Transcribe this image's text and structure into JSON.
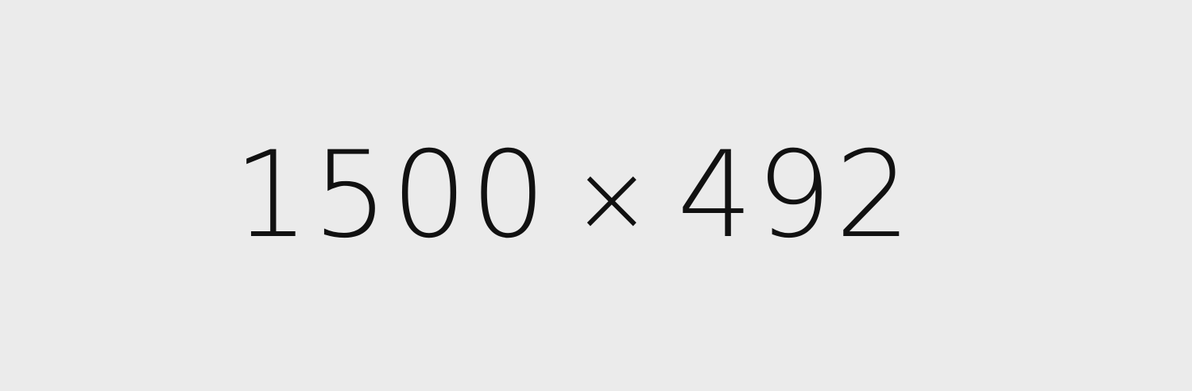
{
  "placeholder": {
    "width_text": "1500",
    "separator": "×",
    "height_text": "492"
  },
  "colors": {
    "background": "#ebebeb",
    "text": "#111111"
  }
}
